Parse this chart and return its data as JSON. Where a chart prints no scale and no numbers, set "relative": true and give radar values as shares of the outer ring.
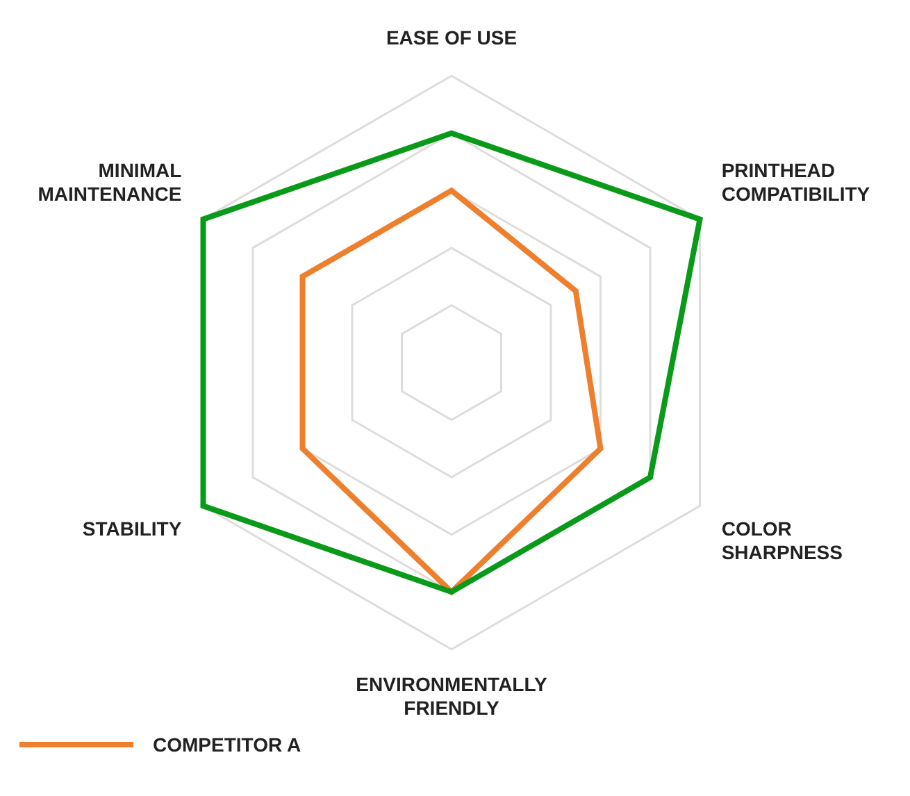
{
  "chart_data": {
    "type": "radar",
    "relative": true,
    "categories": [
      "EASE OF USE",
      "PRINTHEAD COMPATIBILITY",
      "COLOR SHARPNESS",
      "ENVIRONMENTALLY FRIENDLY",
      "STABILITY",
      "MINIMAL MAINTENANCE"
    ],
    "series": [
      {
        "color": "#0a9a1a",
        "values": [
          0.8,
          1,
          0.8,
          0.8,
          1,
          1
        ]
      },
      {
        "name": "COMPETITOR A",
        "color": "#ee7f2d",
        "values": [
          0.6,
          0.5,
          0.6,
          0.8,
          0.6,
          0.6
        ]
      }
    ],
    "legend": "bottom left"
  }
}
